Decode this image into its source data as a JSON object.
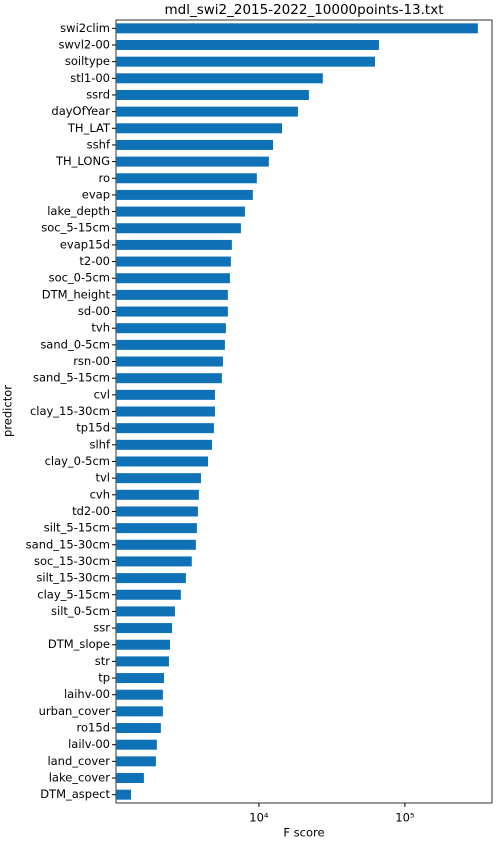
{
  "chart_data": {
    "type": "barh",
    "title": "mdl_swi2_2015-2022_10000points-13.txt",
    "xlabel": "F score",
    "ylabel": "predictor",
    "color": "#0f72b6",
    "xscale": "log",
    "xlim": [
      1050,
      395000
    ],
    "xticks": [
      {
        "value": 10000,
        "label": "10⁴"
      },
      {
        "value": 100000,
        "label": "10⁵"
      }
    ],
    "categories": [
      "swi2clim",
      "swvl2-00",
      "soiltype",
      "stl1-00",
      "ssrd",
      "dayOfYear",
      "TH_LAT",
      "sshf",
      "TH_LONG",
      "ro",
      "evap",
      "lake_depth",
      "soc_5-15cm",
      "evap15d",
      "t2-00",
      "soc_0-5cm",
      "DTM_height",
      "sd-00",
      "tvh",
      "sand_0-5cm",
      "rsn-00",
      "sand_5-15cm",
      "cvl",
      "clay_15-30cm",
      "tp15d",
      "slhf",
      "clay_0-5cm",
      "tvl",
      "cvh",
      "td2-00",
      "silt_5-15cm",
      "sand_15-30cm",
      "soc_15-30cm",
      "silt_15-30cm",
      "clay_5-15cm",
      "silt_0-5cm",
      "ssr",
      "DTM_slope",
      "str",
      "tp",
      "laihv-00",
      "urban_cover",
      "ro15d",
      "lailv-00",
      "land_cover",
      "lake_cover",
      "DTM_aspect"
    ],
    "values": [
      316000,
      66400,
      62400,
      27400,
      22000,
      18500,
      14400,
      12500,
      11700,
      9680,
      9090,
      8020,
      7530,
      6530,
      6430,
      6330,
      6130,
      6130,
      5940,
      5850,
      5670,
      5580,
      5000,
      5000,
      4920,
      4770,
      4480,
      4010,
      3880,
      3820,
      3760,
      3700,
      3470,
      3160,
      2920,
      2660,
      2540,
      2460,
      2420,
      2240,
      2200,
      2200,
      2130,
      2000,
      1970,
      1630,
      1330
    ]
  }
}
